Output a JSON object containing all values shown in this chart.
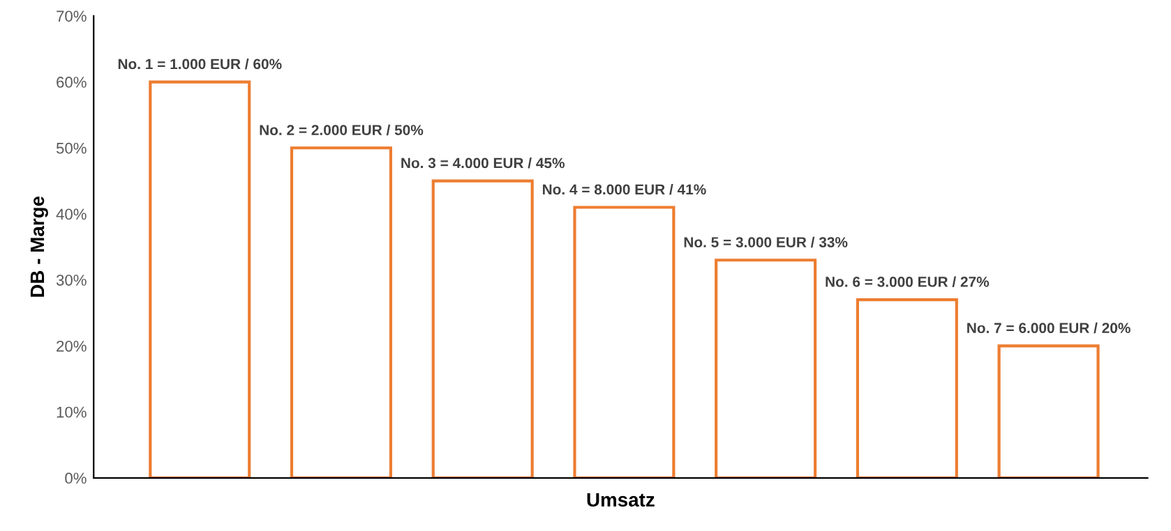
{
  "chart_data": {
    "type": "bar",
    "xlabel": "Umsatz",
    "ylabel": "DB - Marge",
    "categories": [
      null,
      null,
      null,
      null,
      null,
      null,
      null
    ],
    "values": [
      60,
      50,
      45,
      41,
      33,
      27,
      20
    ],
    "value_labels": [
      "No. 1 = 1.000 EUR / 60%",
      "No. 2 = 2.000 EUR / 50%",
      "No. 3 = 4.000 EUR / 45%",
      "No. 4 = 8.000 EUR / 41%",
      "No. 5 = 3.000 EUR / 33%",
      "No. 6 = 3.000 EUR / 27%",
      "No. 7 = 6.000 EUR / 20%"
    ],
    "color": "#ed7d31",
    "ylim": [
      0,
      70
    ],
    "yticks": [
      {
        "value": 0,
        "label": "0%"
      },
      {
        "value": 10,
        "label": "10%"
      },
      {
        "value": 20,
        "label": "20%"
      },
      {
        "value": 30,
        "label": "30%"
      },
      {
        "value": 40,
        "label": "40%"
      },
      {
        "value": 50,
        "label": "50%"
      },
      {
        "value": 60,
        "label": "60%"
      },
      {
        "value": 70,
        "label": "70%"
      }
    ],
    "grid": false
  }
}
